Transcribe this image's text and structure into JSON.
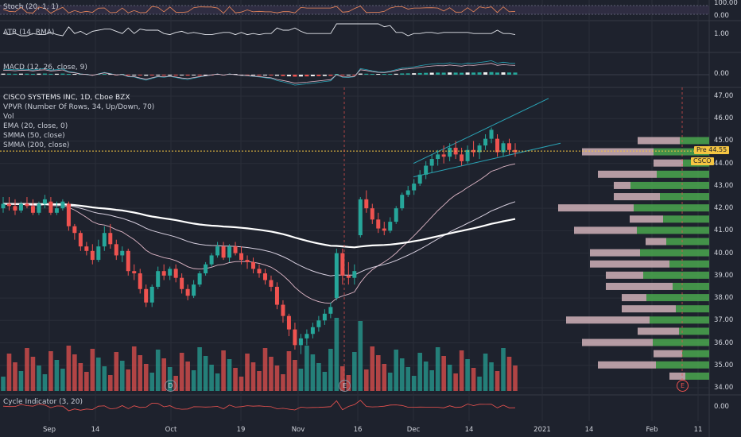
{
  "colors": {
    "background": "#1e222d",
    "up": "#26a69a",
    "down": "#ef5350",
    "grid": "#2a2e39",
    "text": "#d1d4dc",
    "ema": "#e0b7c7",
    "smma50": "#d8d0e0",
    "smma200": "#ffffff",
    "vpvr_up": "#4caf50",
    "vpvr_down": "#e8c4cb",
    "channel": "#2aa3b5",
    "last_price": "#f5c542"
  },
  "panes": {
    "stoch": {
      "label": "Stoch (20, 1, 1)",
      "axis": [
        "100.00",
        "0.00"
      ]
    },
    "atr": {
      "label": "ATR (14, RMA)",
      "axis": [
        "1.00"
      ]
    },
    "macd": {
      "label": "MACD (12, 26, close, 9)",
      "axis": [
        "0.00"
      ]
    },
    "cycle": {
      "label": "Cycle Indicator (3, 20)",
      "axis": [
        "0.00"
      ]
    }
  },
  "main": {
    "title": "CISCO SYSTEMS INC, 1D, Cboe BZX",
    "indicators": [
      "VPVR (Number Of Rows, 34, Up/Down, 70)",
      "Vol",
      "EMA (20, close, 0)",
      "SMMA (50, close)",
      "SMMA (200, close)"
    ],
    "price_axis": [
      "47.00",
      "46.00",
      "45.00",
      "44.00",
      "43.00",
      "42.00",
      "41.00",
      "40.00",
      "39.00",
      "38.00",
      "37.00",
      "36.00",
      "35.00",
      "34.00"
    ],
    "tags": {
      "pre_label": "Pre",
      "pre_value": "44.55",
      "symbol": "CSCO"
    },
    "markers": [
      {
        "letter": "D",
        "x_label": "Oct"
      },
      {
        "letter": "E",
        "x_label": "16"
      },
      {
        "letter": "E",
        "x_label": "Feb"
      }
    ]
  },
  "time_axis": [
    "Sep",
    "14",
    "Oct",
    "19",
    "Nov",
    "16",
    "Dec",
    "14",
    "2021",
    "14",
    "Feb",
    "11"
  ],
  "chart_data": {
    "type": "candlestick",
    "title": "CISCO SYSTEMS INC, 1D, Cboe BZX",
    "ylim": [
      34,
      47
    ],
    "candles": [
      {
        "o": 42.0,
        "h": 42.5,
        "l": 41.8,
        "c": 42.2
      },
      {
        "o": 42.2,
        "h": 42.5,
        "l": 41.9,
        "c": 42.1
      },
      {
        "o": 42.1,
        "h": 42.4,
        "l": 41.7,
        "c": 41.9
      },
      {
        "o": 41.9,
        "h": 42.3,
        "l": 41.8,
        "c": 42.2
      },
      {
        "o": 42.2,
        "h": 42.5,
        "l": 42.0,
        "c": 42.1
      },
      {
        "o": 42.1,
        "h": 42.4,
        "l": 41.7,
        "c": 41.8
      },
      {
        "o": 41.8,
        "h": 42.3,
        "l": 41.7,
        "c": 42.2
      },
      {
        "o": 42.2,
        "h": 42.6,
        "l": 42.0,
        "c": 42.4
      },
      {
        "o": 42.3,
        "h": 42.5,
        "l": 41.7,
        "c": 41.8
      },
      {
        "o": 41.8,
        "h": 42.3,
        "l": 41.7,
        "c": 42.0
      },
      {
        "o": 42.0,
        "h": 42.4,
        "l": 41.9,
        "c": 42.3
      },
      {
        "o": 42.2,
        "h": 42.3,
        "l": 41.0,
        "c": 41.2
      },
      {
        "o": 41.2,
        "h": 41.3,
        "l": 40.6,
        "c": 40.9
      },
      {
        "o": 40.9,
        "h": 41.0,
        "l": 40.1,
        "c": 40.3
      },
      {
        "o": 40.3,
        "h": 40.5,
        "l": 39.9,
        "c": 40.1
      },
      {
        "o": 40.1,
        "h": 40.4,
        "l": 39.5,
        "c": 39.7
      },
      {
        "o": 39.7,
        "h": 40.6,
        "l": 39.6,
        "c": 40.3
      },
      {
        "o": 40.3,
        "h": 41.2,
        "l": 40.1,
        "c": 40.9
      },
      {
        "o": 40.9,
        "h": 41.3,
        "l": 40.2,
        "c": 40.4
      },
      {
        "o": 40.4,
        "h": 40.6,
        "l": 39.7,
        "c": 39.9
      },
      {
        "o": 39.9,
        "h": 40.3,
        "l": 39.6,
        "c": 40.1
      },
      {
        "o": 40.1,
        "h": 40.2,
        "l": 39.0,
        "c": 39.2
      },
      {
        "o": 39.2,
        "h": 39.5,
        "l": 38.8,
        "c": 39.1
      },
      {
        "o": 39.1,
        "h": 39.3,
        "l": 38.2,
        "c": 38.4
      },
      {
        "o": 38.4,
        "h": 38.6,
        "l": 37.6,
        "c": 37.8
      },
      {
        "o": 37.8,
        "h": 38.6,
        "l": 37.6,
        "c": 38.5
      },
      {
        "o": 38.5,
        "h": 39.4,
        "l": 38.4,
        "c": 39.2
      },
      {
        "o": 39.2,
        "h": 39.5,
        "l": 38.8,
        "c": 39.0
      },
      {
        "o": 39.0,
        "h": 39.4,
        "l": 38.8,
        "c": 39.3
      },
      {
        "o": 39.3,
        "h": 39.5,
        "l": 38.7,
        "c": 38.9
      },
      {
        "o": 38.9,
        "h": 39.1,
        "l": 38.2,
        "c": 38.4
      },
      {
        "o": 38.4,
        "h": 38.6,
        "l": 37.9,
        "c": 38.1
      },
      {
        "o": 38.1,
        "h": 38.8,
        "l": 38.0,
        "c": 38.6
      },
      {
        "o": 38.6,
        "h": 39.2,
        "l": 38.5,
        "c": 39.1
      },
      {
        "o": 39.1,
        "h": 39.6,
        "l": 39.0,
        "c": 39.5
      },
      {
        "o": 39.5,
        "h": 40.0,
        "l": 39.4,
        "c": 39.9
      },
      {
        "o": 39.9,
        "h": 40.5,
        "l": 39.8,
        "c": 40.3
      },
      {
        "o": 40.3,
        "h": 40.5,
        "l": 39.7,
        "c": 39.8
      },
      {
        "o": 39.8,
        "h": 40.4,
        "l": 39.6,
        "c": 40.3
      },
      {
        "o": 40.3,
        "h": 40.5,
        "l": 39.9,
        "c": 40.0
      },
      {
        "o": 40.0,
        "h": 40.3,
        "l": 39.5,
        "c": 39.7
      },
      {
        "o": 39.7,
        "h": 39.9,
        "l": 39.3,
        "c": 39.6
      },
      {
        "o": 39.6,
        "h": 39.8,
        "l": 39.1,
        "c": 39.3
      },
      {
        "o": 39.3,
        "h": 39.5,
        "l": 38.9,
        "c": 39.1
      },
      {
        "o": 39.1,
        "h": 39.3,
        "l": 38.6,
        "c": 38.8
      },
      {
        "o": 38.8,
        "h": 39.0,
        "l": 38.3,
        "c": 38.5
      },
      {
        "o": 38.5,
        "h": 38.7,
        "l": 37.5,
        "c": 37.7
      },
      {
        "o": 37.7,
        "h": 37.9,
        "l": 36.9,
        "c": 37.2
      },
      {
        "o": 37.2,
        "h": 37.3,
        "l": 36.3,
        "c": 36.6
      },
      {
        "o": 36.6,
        "h": 36.9,
        "l": 35.7,
        "c": 35.9
      },
      {
        "o": 35.9,
        "h": 36.4,
        "l": 35.5,
        "c": 36.2
      },
      {
        "o": 36.2,
        "h": 36.6,
        "l": 35.9,
        "c": 36.4
      },
      {
        "o": 36.4,
        "h": 36.9,
        "l": 36.2,
        "c": 36.7
      },
      {
        "o": 36.7,
        "h": 37.2,
        "l": 36.5,
        "c": 37.0
      },
      {
        "o": 37.0,
        "h": 37.5,
        "l": 36.8,
        "c": 37.3
      },
      {
        "o": 37.3,
        "h": 37.8,
        "l": 37.1,
        "c": 37.6
      },
      {
        "o": 38.0,
        "h": 40.2,
        "l": 37.9,
        "c": 40.0
      },
      {
        "o": 40.0,
        "h": 40.2,
        "l": 38.6,
        "c": 39.0
      },
      {
        "o": 39.0,
        "h": 39.6,
        "l": 38.6,
        "c": 38.9
      },
      {
        "o": 38.9,
        "h": 39.5,
        "l": 38.6,
        "c": 39.2
      },
      {
        "o": 40.8,
        "h": 42.5,
        "l": 40.7,
        "c": 42.4
      },
      {
        "o": 42.4,
        "h": 42.8,
        "l": 41.8,
        "c": 42.0
      },
      {
        "o": 42.0,
        "h": 42.2,
        "l": 41.3,
        "c": 41.5
      },
      {
        "o": 41.5,
        "h": 41.8,
        "l": 40.9,
        "c": 41.1
      },
      {
        "o": 41.1,
        "h": 41.4,
        "l": 40.8,
        "c": 41.0
      },
      {
        "o": 41.0,
        "h": 41.6,
        "l": 40.9,
        "c": 41.4
      },
      {
        "o": 41.4,
        "h": 42.1,
        "l": 41.3,
        "c": 42.0
      },
      {
        "o": 42.0,
        "h": 42.7,
        "l": 41.9,
        "c": 42.6
      },
      {
        "o": 42.6,
        "h": 43.0,
        "l": 42.5,
        "c": 42.8
      },
      {
        "o": 42.8,
        "h": 43.3,
        "l": 42.6,
        "c": 43.1
      },
      {
        "o": 43.1,
        "h": 43.7,
        "l": 43.0,
        "c": 43.5
      },
      {
        "o": 43.5,
        "h": 44.1,
        "l": 43.3,
        "c": 43.9
      },
      {
        "o": 43.9,
        "h": 44.4,
        "l": 43.6,
        "c": 44.2
      },
      {
        "o": 44.2,
        "h": 44.6,
        "l": 43.9,
        "c": 44.4
      },
      {
        "o": 44.4,
        "h": 44.8,
        "l": 44.0,
        "c": 44.3
      },
      {
        "o": 44.3,
        "h": 44.9,
        "l": 44.1,
        "c": 44.7
      },
      {
        "o": 44.7,
        "h": 45.0,
        "l": 44.2,
        "c": 44.4
      },
      {
        "o": 44.4,
        "h": 44.7,
        "l": 43.9,
        "c": 44.1
      },
      {
        "o": 44.1,
        "h": 44.8,
        "l": 44.0,
        "c": 44.6
      },
      {
        "o": 44.6,
        "h": 45.0,
        "l": 44.3,
        "c": 44.5
      },
      {
        "o": 44.5,
        "h": 44.9,
        "l": 44.2,
        "c": 44.8
      },
      {
        "o": 44.8,
        "h": 45.3,
        "l": 44.6,
        "c": 45.1
      },
      {
        "o": 45.1,
        "h": 45.6,
        "l": 44.9,
        "c": 45.5
      },
      {
        "o": 45.1,
        "h": 45.3,
        "l": 44.3,
        "c": 44.5
      },
      {
        "o": 44.5,
        "h": 45.0,
        "l": 44.3,
        "c": 44.9
      },
      {
        "o": 44.9,
        "h": 45.1,
        "l": 44.4,
        "c": 44.6
      },
      {
        "o": 44.6,
        "h": 44.9,
        "l": 44.3,
        "c": 44.5
      }
    ],
    "channel": {
      "upper": [
        [
          44.0,
          46.9
        ]
      ],
      "lower": [
        [
          43.4,
          44.9
        ]
      ]
    },
    "vpvr_prices": [
      34.5,
      35.0,
      35.5,
      36.0,
      36.5,
      37.0,
      37.5,
      38.0,
      38.5,
      39.0,
      39.5,
      40.0,
      40.5,
      41.0,
      41.5,
      42.0,
      42.5,
      43.0,
      43.5,
      44.0,
      44.5,
      45.0
    ]
  }
}
